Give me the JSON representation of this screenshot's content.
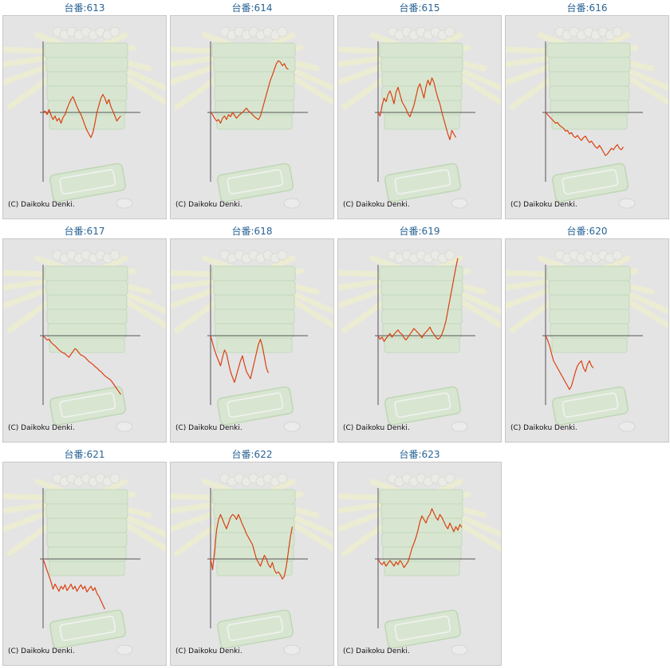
{
  "copyright": "(C) Daikoku Denki.",
  "colors": {
    "title": "#2a6496",
    "line": "#d94010",
    "axis": "#555555",
    "panel_bg": "#e4e4e4"
  },
  "chart_data": [
    {
      "type": "line",
      "title": "台番:613",
      "values": [
        0,
        2,
        -3,
        4,
        -4,
        -10,
        -5,
        -12,
        -8,
        -15,
        -7,
        -3,
        5,
        12,
        18,
        22,
        15,
        8,
        2,
        -3,
        -10,
        -18,
        -25,
        -30,
        -35,
        -28,
        -15,
        0,
        10,
        20,
        25,
        20,
        12,
        18,
        8,
        2,
        -5,
        -12,
        -8,
        -5
      ]
    },
    {
      "type": "line",
      "title": "台番:614",
      "values": [
        0,
        -3,
        -8,
        -12,
        -10,
        -15,
        -8,
        -5,
        -10,
        -3,
        -6,
        0,
        -4,
        -8,
        -5,
        -2,
        0,
        3,
        6,
        2,
        0,
        -3,
        -6,
        -8,
        -10,
        -5,
        5,
        15,
        25,
        35,
        45,
        52,
        60,
        68,
        72,
        70,
        65,
        68,
        62,
        60
      ]
    },
    {
      "type": "line",
      "title": "台番:615",
      "values": [
        0,
        -5,
        10,
        20,
        15,
        25,
        30,
        22,
        12,
        28,
        35,
        25,
        15,
        10,
        5,
        -2,
        -6,
        2,
        10,
        22,
        34,
        40,
        30,
        20,
        35,
        45,
        38,
        48,
        42,
        30,
        20,
        12,
        0,
        -10,
        -20,
        -30,
        -38,
        -25,
        -30,
        -35
      ]
    },
    {
      "type": "line",
      "title": "台番:616",
      "values": [
        0,
        -3,
        -6,
        -9,
        -12,
        -15,
        -14,
        -18,
        -20,
        -22,
        -26,
        -25,
        -30,
        -28,
        -33,
        -35,
        -32,
        -36,
        -39,
        -35,
        -33,
        -38,
        -42,
        -40,
        -44,
        -48,
        -50,
        -46,
        -50,
        -55,
        -60,
        -58,
        -54,
        -50,
        -52,
        -48,
        -45,
        -50,
        -52,
        -48
      ]
    },
    {
      "type": "line",
      "title": "台番:617",
      "values": [
        0,
        -3,
        -6,
        -5,
        -9,
        -12,
        -14,
        -17,
        -20,
        -22,
        -24,
        -25,
        -28,
        -30,
        -26,
        -22,
        -18,
        -20,
        -24,
        -27,
        -28,
        -30,
        -33,
        -36,
        -38,
        -40,
        -43,
        -45,
        -48,
        -50,
        -53,
        -56,
        -58,
        -60,
        -62,
        -66,
        -70,
        -74,
        -78,
        -82
      ]
    },
    {
      "type": "line",
      "title": "台番:618",
      "values": [
        0,
        -10,
        -20,
        -28,
        -35,
        -42,
        -30,
        -20,
        -25,
        -38,
        -50,
        -58,
        -65,
        -55,
        -45,
        -35,
        -28,
        -40,
        -50,
        -55,
        -60,
        -48,
        -36,
        -24,
        -12,
        -5,
        -15,
        -30,
        -45,
        -52
      ]
    },
    {
      "type": "line",
      "title": "台番:619",
      "values": [
        0,
        -5,
        -2,
        -8,
        -4,
        0,
        3,
        -2,
        2,
        5,
        8,
        4,
        2,
        -3,
        -6,
        -2,
        2,
        6,
        10,
        7,
        4,
        1,
        -3,
        2,
        5,
        8,
        12,
        6,
        2,
        -2,
        -5,
        -3,
        2,
        10,
        20,
        35,
        50,
        65,
        80,
        95,
        108
      ]
    },
    {
      "type": "line",
      "title": "台番:620",
      "values": [
        0,
        -6,
        -14,
        -25,
        -35,
        -40,
        -45,
        -50,
        -55,
        -60,
        -65,
        -70,
        -75,
        -70,
        -60,
        -50,
        -42,
        -38,
        -35,
        -45,
        -50,
        -40,
        -35,
        -42,
        -45
      ]
    },
    {
      "type": "line",
      "title": "台番:621",
      "values": [
        0,
        -8,
        -16,
        -24,
        -32,
        -42,
        -35,
        -40,
        -45,
        -38,
        -42,
        -36,
        -44,
        -40,
        -35,
        -42,
        -38,
        -45,
        -40,
        -36,
        -42,
        -38,
        -46,
        -42,
        -38,
        -44,
        -40,
        -48,
        -52,
        -58,
        -64,
        -70
      ]
    },
    {
      "type": "line",
      "title": "台番:622",
      "values": [
        0,
        -15,
        10,
        40,
        55,
        62,
        55,
        48,
        42,
        50,
        58,
        62,
        60,
        55,
        62,
        55,
        48,
        42,
        35,
        30,
        25,
        20,
        10,
        0,
        -5,
        -10,
        -2,
        5,
        0,
        -8,
        -12,
        -5,
        -15,
        -20,
        -18,
        -22,
        -28,
        -24,
        -10,
        10,
        30,
        45
      ]
    },
    {
      "type": "line",
      "title": "台番:623",
      "values": [
        0,
        -5,
        -8,
        -4,
        -10,
        -6,
        -2,
        -6,
        -10,
        -4,
        -8,
        -2,
        -6,
        -12,
        -8,
        -4,
        5,
        15,
        22,
        30,
        40,
        52,
        60,
        55,
        50,
        58,
        62,
        70,
        64,
        58,
        54,
        62,
        58,
        52,
        46,
        42,
        50,
        44,
        38,
        45,
        40,
        48,
        44
      ]
    }
  ]
}
